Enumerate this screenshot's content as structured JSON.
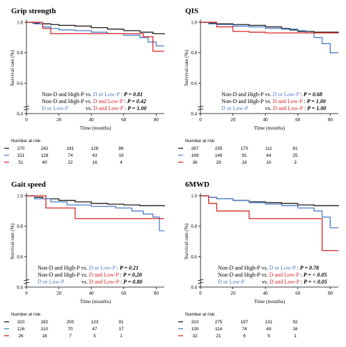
{
  "palette": {
    "non_d_high_p": "#1a1a1a",
    "d_or_low_p": "#4a7dc9",
    "d_and_low_p": "#d62828"
  },
  "chart_data": [
    {
      "type": "line",
      "step": true,
      "title": "Grip strength",
      "xlabel": "Time (months)",
      "ylabel": "Survival rate (%)",
      "xlim": [
        0,
        85
      ],
      "ylim": [
        0.4,
        1.0
      ],
      "xticks": [
        "0",
        "20",
        "40",
        "60",
        "80"
      ],
      "yticks": [
        "0.4",
        "0.6",
        "0.8",
        "1.0"
      ],
      "series": [
        {
          "color": "#1a1a1a",
          "x": [
            0,
            4,
            8,
            15,
            20,
            30,
            40,
            50,
            60,
            70,
            78,
            85
          ],
          "y": [
            1.0,
            0.995,
            0.99,
            0.985,
            0.98,
            0.975,
            0.965,
            0.955,
            0.945,
            0.935,
            0.925,
            0.92
          ]
        },
        {
          "color": "#4a7dc9",
          "x": [
            0,
            5,
            10,
            15,
            20,
            30,
            40,
            50,
            60,
            70,
            75,
            80,
            85
          ],
          "y": [
            1.0,
            0.99,
            0.97,
            0.96,
            0.95,
            0.945,
            0.935,
            0.925,
            0.915,
            0.9,
            0.87,
            0.845,
            0.845
          ]
        },
        {
          "color": "#d62828",
          "x": [
            0,
            10,
            15,
            60,
            72,
            78,
            85
          ],
          "y": [
            1.0,
            0.96,
            0.925,
            0.925,
            0.905,
            0.81,
            0.81
          ]
        }
      ],
      "comparisons": [
        {
          "lhs": "Non-D and High-P",
          "vs": "vs.",
          "rhs": "D or Low-P",
          "colon": ":",
          "p": "P = 0.81"
        },
        {
          "lhs": "Non-D and High-P",
          "vs": "vs.",
          "rhs": "D and Low-P",
          "colon": ":",
          "p": "P = 0.42"
        },
        {
          "lhs": "D or Low-P",
          "vs": "vs.",
          "rhs": "D and Low-P",
          "colon": ":",
          "p": "P = 1.00"
        }
      ],
      "risk_title": "Number at risk",
      "risk_rows": [
        {
          "color": "#1a1a1a",
          "values": [
            "270",
            "242",
            "181",
            "126",
            "86"
          ]
        },
        {
          "color": "#4a7dc9",
          "values": [
            "151",
            "128",
            "74",
            "43",
            "19"
          ]
        },
        {
          "color": "#d62828",
          "values": [
            "51",
            "40",
            "22",
            "16",
            "4"
          ]
        }
      ]
    },
    {
      "type": "line",
      "step": true,
      "title": "QIS",
      "xlabel": "Time (months)",
      "ylabel": "Survival rate (%)",
      "xlim": [
        0,
        85
      ],
      "ylim": [
        0.4,
        1.0
      ],
      "xticks": [
        "0",
        "20",
        "40",
        "60",
        "80"
      ],
      "yticks": [
        "0.4",
        "0.6",
        "0.8",
        "1.0"
      ],
      "series": [
        {
          "color": "#1a1a1a",
          "x": [
            0,
            5,
            10,
            20,
            30,
            40,
            50,
            55,
            60,
            70,
            85
          ],
          "y": [
            1.0,
            0.995,
            0.99,
            0.985,
            0.98,
            0.97,
            0.96,
            0.95,
            0.94,
            0.935,
            0.93
          ]
        },
        {
          "color": "#4a7dc9",
          "x": [
            0,
            5,
            10,
            20,
            30,
            40,
            50,
            60,
            65,
            70,
            75,
            80,
            85
          ],
          "y": [
            1.0,
            0.99,
            0.985,
            0.975,
            0.97,
            0.96,
            0.955,
            0.945,
            0.93,
            0.9,
            0.86,
            0.8,
            0.8
          ]
        },
        {
          "color": "#d62828",
          "x": [
            0,
            10,
            20,
            30,
            40,
            85
          ],
          "y": [
            1.0,
            0.97,
            0.94,
            0.935,
            0.93,
            0.93
          ]
        }
      ],
      "comparisons": [
        {
          "lhs": "Non-D and High-P",
          "vs": "vs.",
          "rhs": "D or Low-P",
          "colon": ":",
          "p": "P = 0.68"
        },
        {
          "lhs": "Non-D and High-P",
          "vs": "vs.",
          "rhs": "D and Low-P",
          "colon": ":",
          "p": "P = 1.00"
        },
        {
          "lhs": "D or Low-P",
          "vs": "vs.",
          "rhs": "D and Low-P",
          "colon": ":",
          "p": "P = 1.00"
        }
      ],
      "risk_title": "Number at risk",
      "risk_rows": [
        {
          "color": "#1a1a1a",
          "values": [
            "267",
            "235",
            "170",
            "111",
            "81"
          ]
        },
        {
          "color": "#4a7dc9",
          "values": [
            "169",
            "146",
            "91",
            "64",
            "25"
          ]
        },
        {
          "color": "#d62828",
          "values": [
            "36",
            "29",
            "16",
            "10",
            "3"
          ]
        }
      ]
    },
    {
      "type": "line",
      "step": true,
      "title": "Gait speed",
      "xlabel": "Time (months)",
      "ylabel": "Survival rate (%)",
      "xlim": [
        0,
        85
      ],
      "ylim": [
        0.4,
        1.0
      ],
      "xticks": [
        "0",
        "20",
        "40",
        "60",
        "80"
      ],
      "yticks": [
        "0.4",
        "0.6",
        "0.8",
        "1.0"
      ],
      "series": [
        {
          "color": "#1a1a1a",
          "x": [
            0,
            5,
            10,
            20,
            30,
            40,
            50,
            60,
            70,
            85
          ],
          "y": [
            1.0,
            0.99,
            0.98,
            0.97,
            0.96,
            0.95,
            0.945,
            0.94,
            0.935,
            0.93
          ]
        },
        {
          "color": "#4a7dc9",
          "x": [
            0,
            5,
            15,
            25,
            40,
            55,
            65,
            72,
            78,
            82,
            85
          ],
          "y": [
            1.0,
            0.98,
            0.96,
            0.94,
            0.93,
            0.92,
            0.9,
            0.88,
            0.86,
            0.77,
            0.77
          ]
        },
        {
          "color": "#d62828",
          "x": [
            0,
            12,
            30,
            85
          ],
          "y": [
            1.0,
            0.92,
            0.85,
            0.85
          ]
        }
      ],
      "comparisons": [
        {
          "lhs": "Non-D and High-P",
          "vs": "vs.",
          "rhs": "D or Low-P",
          "colon": ":",
          "p": "P = 0.21"
        },
        {
          "lhs": "Non-D and High-P",
          "vs": "vs.",
          "rhs": "D and Low-P",
          "colon": ":",
          "p": "P = 0.20"
        },
        {
          "lhs": "D or Low-P",
          "vs": "vs.",
          "rhs": "D and Low-P",
          "colon": ":",
          "p": "P = 0.80"
        }
      ],
      "risk_title": "Number at risk",
      "risk_rows": [
        {
          "color": "#1a1a1a",
          "values": [
            "320",
            "282",
            "200",
            "133",
            "91"
          ]
        },
        {
          "color": "#4a7dc9",
          "values": [
            "126",
            "110",
            "70",
            "47",
            "17"
          ]
        },
        {
          "color": "#d62828",
          "values": [
            "26",
            "18",
            "7",
            "5",
            "1"
          ]
        }
      ]
    },
    {
      "type": "line",
      "step": true,
      "title": "6MWD",
      "xlabel": "Time (months)",
      "ylabel": "Survival rate (%)",
      "xlim": [
        0,
        85
      ],
      "ylim": [
        0.4,
        1.0
      ],
      "xticks": [
        "0",
        "20",
        "40",
        "60",
        "80"
      ],
      "yticks": [
        "0.4",
        "0.6",
        "0.8",
        "1.0"
      ],
      "series": [
        {
          "color": "#1a1a1a",
          "x": [
            0,
            5,
            10,
            20,
            30,
            40,
            50,
            60,
            70,
            85
          ],
          "y": [
            1.0,
            0.99,
            0.98,
            0.97,
            0.96,
            0.955,
            0.95,
            0.94,
            0.935,
            0.93
          ]
        },
        {
          "color": "#4a7dc9",
          "x": [
            0,
            5,
            10,
            20,
            30,
            40,
            50,
            60,
            70,
            75,
            80,
            85
          ],
          "y": [
            1.0,
            0.99,
            0.98,
            0.97,
            0.955,
            0.945,
            0.935,
            0.92,
            0.9,
            0.86,
            0.79,
            0.79
          ]
        },
        {
          "color": "#d62828",
          "x": [
            0,
            5,
            10,
            30,
            75,
            85
          ],
          "y": [
            1.0,
            0.95,
            0.9,
            0.85,
            0.64,
            0.64
          ]
        }
      ],
      "comparisons": [
        {
          "lhs": "Non-D and High-P",
          "vs": "vs.",
          "rhs": "D or Low-P",
          "colon": ":",
          "p": "P = 0.78"
        },
        {
          "lhs": "Non-D and High-P",
          "vs": "vs.",
          "rhs": "D and Low-P",
          "colon": ":",
          "p": "P = < 0.05"
        },
        {
          "lhs": "D or Low-P",
          "vs": "vs.",
          "rhs": "D and Low-P",
          "colon": ":",
          "p": "P = < 0.05"
        }
      ],
      "risk_title": "Number at risk",
      "risk_rows": [
        {
          "color": "#1a1a1a",
          "values": [
            "310",
            "275",
            "197",
            "131",
            "92"
          ]
        },
        {
          "color": "#4a7dc9",
          "values": [
            "130",
            "114",
            "74",
            "49",
            "16"
          ]
        },
        {
          "color": "#d62828",
          "values": [
            "32",
            "21",
            "6",
            "5",
            "1"
          ]
        }
      ]
    }
  ]
}
